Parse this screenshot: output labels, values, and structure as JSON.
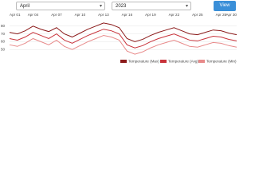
{
  "controls": {
    "month": "April",
    "year": "2023",
    "button": "View"
  },
  "chart_data": {
    "type": "line",
    "categories": [
      "Apr 01",
      null,
      null,
      "Apr 04",
      null,
      null,
      "Apr 07",
      null,
      null,
      "Apr 10",
      null,
      null,
      "Apr 13",
      null,
      null,
      "Apr 16",
      null,
      null,
      "Apr 19",
      null,
      null,
      "Apr 22",
      null,
      null,
      "Apr 25",
      null,
      null,
      "Apr 28",
      null,
      "Apr 30"
    ],
    "series": [
      {
        "name": "Temperature (Max)",
        "color": "#8b1a1a",
        "values": [
          72,
          70,
          74,
          80,
          76,
          73,
          78,
          70,
          66,
          71,
          76,
          80,
          84,
          82,
          78,
          64,
          60,
          63,
          68,
          72,
          75,
          78,
          74,
          70,
          69,
          72,
          75,
          74,
          71,
          69
        ]
      },
      {
        "name": "Temperature (Avg)",
        "color": "#c8323a",
        "values": [
          64,
          62,
          66,
          72,
          68,
          64,
          70,
          62,
          58,
          63,
          68,
          72,
          76,
          74,
          70,
          56,
          52,
          55,
          60,
          64,
          67,
          70,
          66,
          62,
          61,
          64,
          67,
          66,
          63,
          61
        ]
      },
      {
        "name": "Temperature (Min)",
        "color": "#e88a8a",
        "values": [
          56,
          54,
          58,
          64,
          60,
          56,
          62,
          54,
          50,
          55,
          60,
          64,
          68,
          66,
          62,
          48,
          44,
          47,
          52,
          56,
          59,
          62,
          58,
          54,
          53,
          56,
          59,
          58,
          55,
          53
        ]
      }
    ],
    "ylim": [
      40,
      90
    ],
    "yticks": [
      50,
      60,
      70,
      80
    ],
    "grid": true,
    "legend": "bottom-right"
  }
}
